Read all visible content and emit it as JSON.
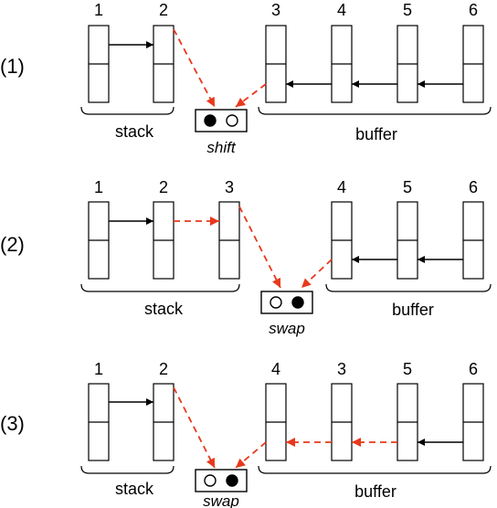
{
  "colors": {
    "solid": "#000000",
    "dashed": "#e8391c"
  },
  "panels": [
    {
      "row_label": "(1)",
      "tokens": [
        "1",
        "2",
        "3",
        "4",
        "5",
        "6"
      ],
      "operation": "shift",
      "stack_label": "stack",
      "buffer_label": "buffer",
      "indicator": [
        "filled",
        "empty"
      ]
    },
    {
      "row_label": "(2)",
      "tokens": [
        "1",
        "2",
        "3",
        "4",
        "5",
        "6"
      ],
      "operation": "swap",
      "stack_label": "stack",
      "buffer_label": "buffer",
      "indicator": [
        "empty",
        "filled"
      ]
    },
    {
      "row_label": "(3)",
      "tokens": [
        "1",
        "2",
        "4",
        "3",
        "5",
        "6"
      ],
      "operation": "swap",
      "stack_label": "stack",
      "buffer_label": "buffer",
      "indicator": [
        "empty",
        "filled"
      ]
    }
  ]
}
